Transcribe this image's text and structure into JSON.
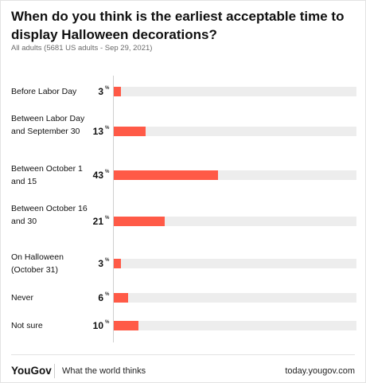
{
  "header": {
    "title": "When do you think is the earliest acceptable time to display Halloween decorations?",
    "subtitle": "All adults (5681 US adults - Sep 29, 2021)"
  },
  "chart_data": {
    "type": "bar",
    "orientation": "horizontal",
    "title": "When do you think is the earliest acceptable time to display Halloween decorations?",
    "categories": [
      "Before Labor Day",
      "Between Labor Day and September 30",
      "Between October 1 and 15",
      "Between October 16 and 30",
      "On Halloween (October 31)",
      "Never",
      "Not sure"
    ],
    "values": [
      3,
      13,
      43,
      21,
      3,
      6,
      10
    ],
    "value_unit": "%",
    "xlim": [
      0,
      100
    ],
    "bar_color": "#ff5a47",
    "track_color": "#ededed",
    "grid": false
  },
  "footer": {
    "brand": "YouGov",
    "tagline": "What the world thinks",
    "url": "today.yougov.com"
  }
}
